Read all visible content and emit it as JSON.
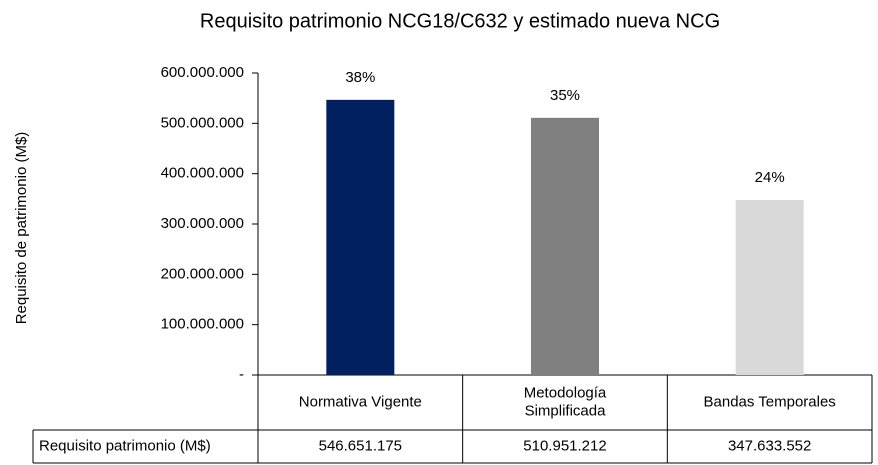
{
  "chart_data": {
    "type": "bar",
    "title": "Requisito patrimonio NCG18/C632 y estimado nueva NCG",
    "y_label": "Requisito de patrimonio (M$)",
    "categories": [
      "Normativa Vigente",
      "Metodología Simplificada",
      "Bandas Temporales"
    ],
    "series": [
      {
        "name": "Requisito patrimonio (M$)",
        "colors": [
          "#002060",
          "#808080",
          "#d9d9d9"
        ],
        "values": [
          546651175,
          510951212,
          347633552
        ],
        "value_labels": [
          "546.651.175",
          "510.951.212",
          "347.633.552"
        ]
      }
    ],
    "annotations": [
      "38%",
      "35%",
      "24%"
    ],
    "ylim": [
      0,
      600000000
    ],
    "yticks": [
      {
        "value": 0,
        "label": "-"
      },
      {
        "value": 100000000,
        "label": "100.000.000"
      },
      {
        "value": 200000000,
        "label": "200.000.000"
      },
      {
        "value": 300000000,
        "label": "300.000.000"
      },
      {
        "value": 400000000,
        "label": "400.000.000"
      },
      {
        "value": 500000000,
        "label": "500.000.000"
      },
      {
        "value": 600000000,
        "label": "600.000.000"
      }
    ]
  }
}
